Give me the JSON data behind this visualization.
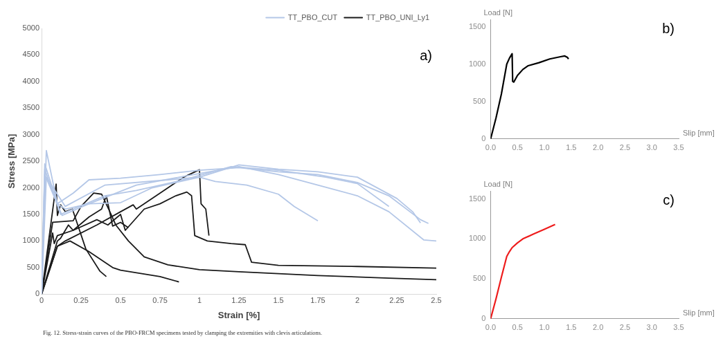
{
  "chart_data": [
    {
      "type": "line",
      "title": "a)",
      "xlabel": "Strain [%]",
      "ylabel": "Stress [MPa]",
      "xlim": [
        0,
        2.5
      ],
      "ylim": [
        0,
        5000
      ],
      "xticks": [
        0,
        0.25,
        0.5,
        0.75,
        1,
        1.25,
        1.5,
        1.75,
        2,
        2.25,
        2.5
      ],
      "yticks": [
        0,
        500,
        1000,
        1500,
        2000,
        2500,
        3000,
        3500,
        4000,
        4500,
        5000
      ],
      "legend": "top right",
      "grid": false,
      "marker": "none",
      "line_style": "solid",
      "annotations": [
        "Fig. 12. Stress-strain curves of the PBO-FRCM specimens tested by clamping the extremities with clevis articulations."
      ],
      "series": [
        {
          "name": "TT_PBO_CUT",
          "color": "#b4c7e7",
          "x": [
            0,
            0.03,
            0.1,
            0.2,
            0.3,
            0.5,
            0.75,
            1,
            1.25,
            1.5,
            1.75,
            2,
            2.2,
            2.4,
            2.45
          ],
          "values": [
            0,
            2700,
            1700,
            1900,
            2150,
            2180,
            2250,
            2330,
            2380,
            2300,
            2250,
            2100,
            1850,
            1400,
            1330
          ]
        },
        {
          "color": "#b4c7e7",
          "x": [
            0,
            0.02,
            0.1,
            0.15,
            0.3,
            0.5,
            0.7,
            1,
            1.25,
            1.5,
            1.75,
            2,
            2.25,
            2.35,
            2.4
          ],
          "values": [
            0,
            2450,
            1700,
            1600,
            1700,
            1720,
            2000,
            2200,
            2430,
            2350,
            2300,
            2200,
            1800,
            1550,
            1340
          ]
        },
        {
          "color": "#b4c7e7",
          "x": [
            0,
            0.02,
            0.12,
            0.2,
            0.4,
            0.6,
            0.9,
            1.2,
            1.5,
            1.8,
            2,
            2.2
          ],
          "values": [
            0,
            2350,
            1500,
            1600,
            1850,
            1950,
            2150,
            2400,
            2330,
            2200,
            2080,
            1650
          ]
        },
        {
          "color": "#b4c7e7",
          "x": [
            0,
            0.02,
            0.13,
            0.3,
            0.6,
            1,
            1.25,
            1.5,
            1.75,
            2,
            2.2,
            2.42,
            2.5
          ],
          "values": [
            0,
            2250,
            1480,
            1700,
            2050,
            2270,
            2400,
            2250,
            2050,
            1850,
            1550,
            1020,
            1000
          ]
        },
        {
          "color": "#b4c7e7",
          "x": [
            0,
            0.03,
            0.15,
            0.4,
            0.8,
            1,
            1.1,
            1.3,
            1.5,
            1.6,
            1.75
          ],
          "values": [
            0,
            2200,
            1650,
            2050,
            2150,
            2200,
            2120,
            2050,
            1880,
            1650,
            1380
          ]
        },
        {
          "name": "TT_PBO_UNI_Ly1",
          "color": "#1a1a1a",
          "x": [
            0,
            0.092,
            0.1,
            0.12,
            0.15,
            0.195,
            0.28,
            0.37,
            0.41
          ],
          "values": [
            0,
            2070,
            1480,
            1680,
            1550,
            1600,
            850,
            430,
            330
          ]
        },
        {
          "color": "#1a1a1a",
          "x": [
            0,
            0.1,
            0.18,
            0.3,
            0.45,
            0.5,
            0.75,
            0.87
          ],
          "values": [
            0,
            900,
            1000,
            800,
            500,
            450,
            330,
            230
          ]
        },
        {
          "color": "#1a1a1a",
          "x": [
            0,
            0.07,
            0.2,
            0.25,
            0.33,
            0.38,
            0.44,
            0.47,
            0.55,
            0.65,
            0.8,
            1,
            1.25,
            1.75,
            2.2,
            2.5
          ],
          "values": [
            0,
            1350,
            1380,
            1650,
            1900,
            1880,
            1500,
            1300,
            1000,
            700,
            550,
            460,
            420,
            350,
            300,
            270
          ]
        },
        {
          "color": "#1a1a1a",
          "x": [
            0,
            0.07,
            0.08,
            0.1,
            0.2,
            0.3,
            0.38,
            0.41,
            0.45,
            0.5,
            0.55
          ],
          "values": [
            0,
            1150,
            950,
            1100,
            1200,
            1450,
            1600,
            1850,
            1280,
            1350,
            1250
          ]
        },
        {
          "color": "#1a1a1a",
          "x": [
            0,
            0.1,
            0.12,
            0.17,
            0.2,
            0.35,
            0.42,
            0.5,
            0.53,
            0.65,
            0.75,
            0.85,
            0.92,
            0.95,
            0.97,
            1.05,
            1.2,
            1.29,
            1.33,
            1.5,
            2,
            2.5
          ],
          "values": [
            0,
            1000,
            1050,
            1300,
            1200,
            1400,
            1300,
            1500,
            1200,
            1600,
            1700,
            1850,
            1920,
            1850,
            1100,
            1000,
            950,
            930,
            600,
            540,
            520,
            490
          ]
        },
        {
          "color": "#1a1a1a",
          "x": [
            0,
            0.1,
            0.15,
            0.35,
            0.5,
            0.58,
            0.6,
            0.75,
            0.9,
            1,
            1.01,
            1.04,
            1.06
          ],
          "values": [
            0,
            900,
            1000,
            1300,
            1550,
            1680,
            1600,
            1900,
            2200,
            2340,
            1700,
            1600,
            1100
          ]
        }
      ]
    },
    {
      "type": "line",
      "title": "b)",
      "xlabel": "Slip [mm]",
      "ylabel": "Load [N]",
      "xlim": [
        0,
        3.5
      ],
      "ylim": [
        0,
        1600
      ],
      "xticks": [
        {
          "value": 0,
          "label": "0.0"
        },
        {
          "value": 0.5,
          "label": "0.5"
        },
        {
          "value": 1,
          "label": "1.0"
        },
        {
          "value": 1.5,
          "label": "1.5"
        },
        {
          "value": 2,
          "label": "2.0"
        },
        {
          "value": 2.5,
          "label": "2.5"
        },
        {
          "value": 3,
          "label": "3.0"
        },
        {
          "value": 3.5,
          "label": "3.5"
        }
      ],
      "yticks": [
        0,
        500,
        1000,
        1500
      ],
      "grid": false,
      "marker": "none",
      "series": [
        {
          "color": "#000000",
          "x": [
            0,
            0.1,
            0.2,
            0.3,
            0.35,
            0.4,
            0.41,
            0.43,
            0.5,
            0.6,
            0.7,
            0.9,
            1.1,
            1.3,
            1.38,
            1.43,
            1.45
          ],
          "values": [
            0,
            280,
            600,
            1000,
            1080,
            1140,
            770,
            760,
            850,
            930,
            980,
            1020,
            1070,
            1100,
            1110,
            1090,
            1070
          ]
        }
      ]
    },
    {
      "type": "line",
      "title": "c)",
      "xlabel": "Slip [mm]",
      "ylabel": "Load [N]",
      "xlim": [
        0,
        3.5
      ],
      "ylim": [
        0,
        1600
      ],
      "xticks": [
        {
          "value": 0,
          "label": "0.0"
        },
        {
          "value": 0.5,
          "label": "0.5"
        },
        {
          "value": 1,
          "label": "1.0"
        },
        {
          "value": 1.5,
          "label": "1.5"
        },
        {
          "value": 2,
          "label": "2.0"
        },
        {
          "value": 2.5,
          "label": "2.5"
        },
        {
          "value": 3,
          "label": "3.0"
        },
        {
          "value": 3.5,
          "label": "3.5"
        }
      ],
      "yticks": [
        0,
        500,
        1000,
        1500
      ],
      "grid": false,
      "marker": "none",
      "series": [
        {
          "color": "#ee1c1c",
          "x": [
            0,
            0.1,
            0.2,
            0.3,
            0.35,
            0.4,
            0.5,
            0.6,
            0.8,
            1,
            1.2
          ],
          "values": [
            0,
            250,
            520,
            780,
            840,
            890,
            950,
            1000,
            1060,
            1120,
            1180
          ]
        }
      ]
    }
  ]
}
